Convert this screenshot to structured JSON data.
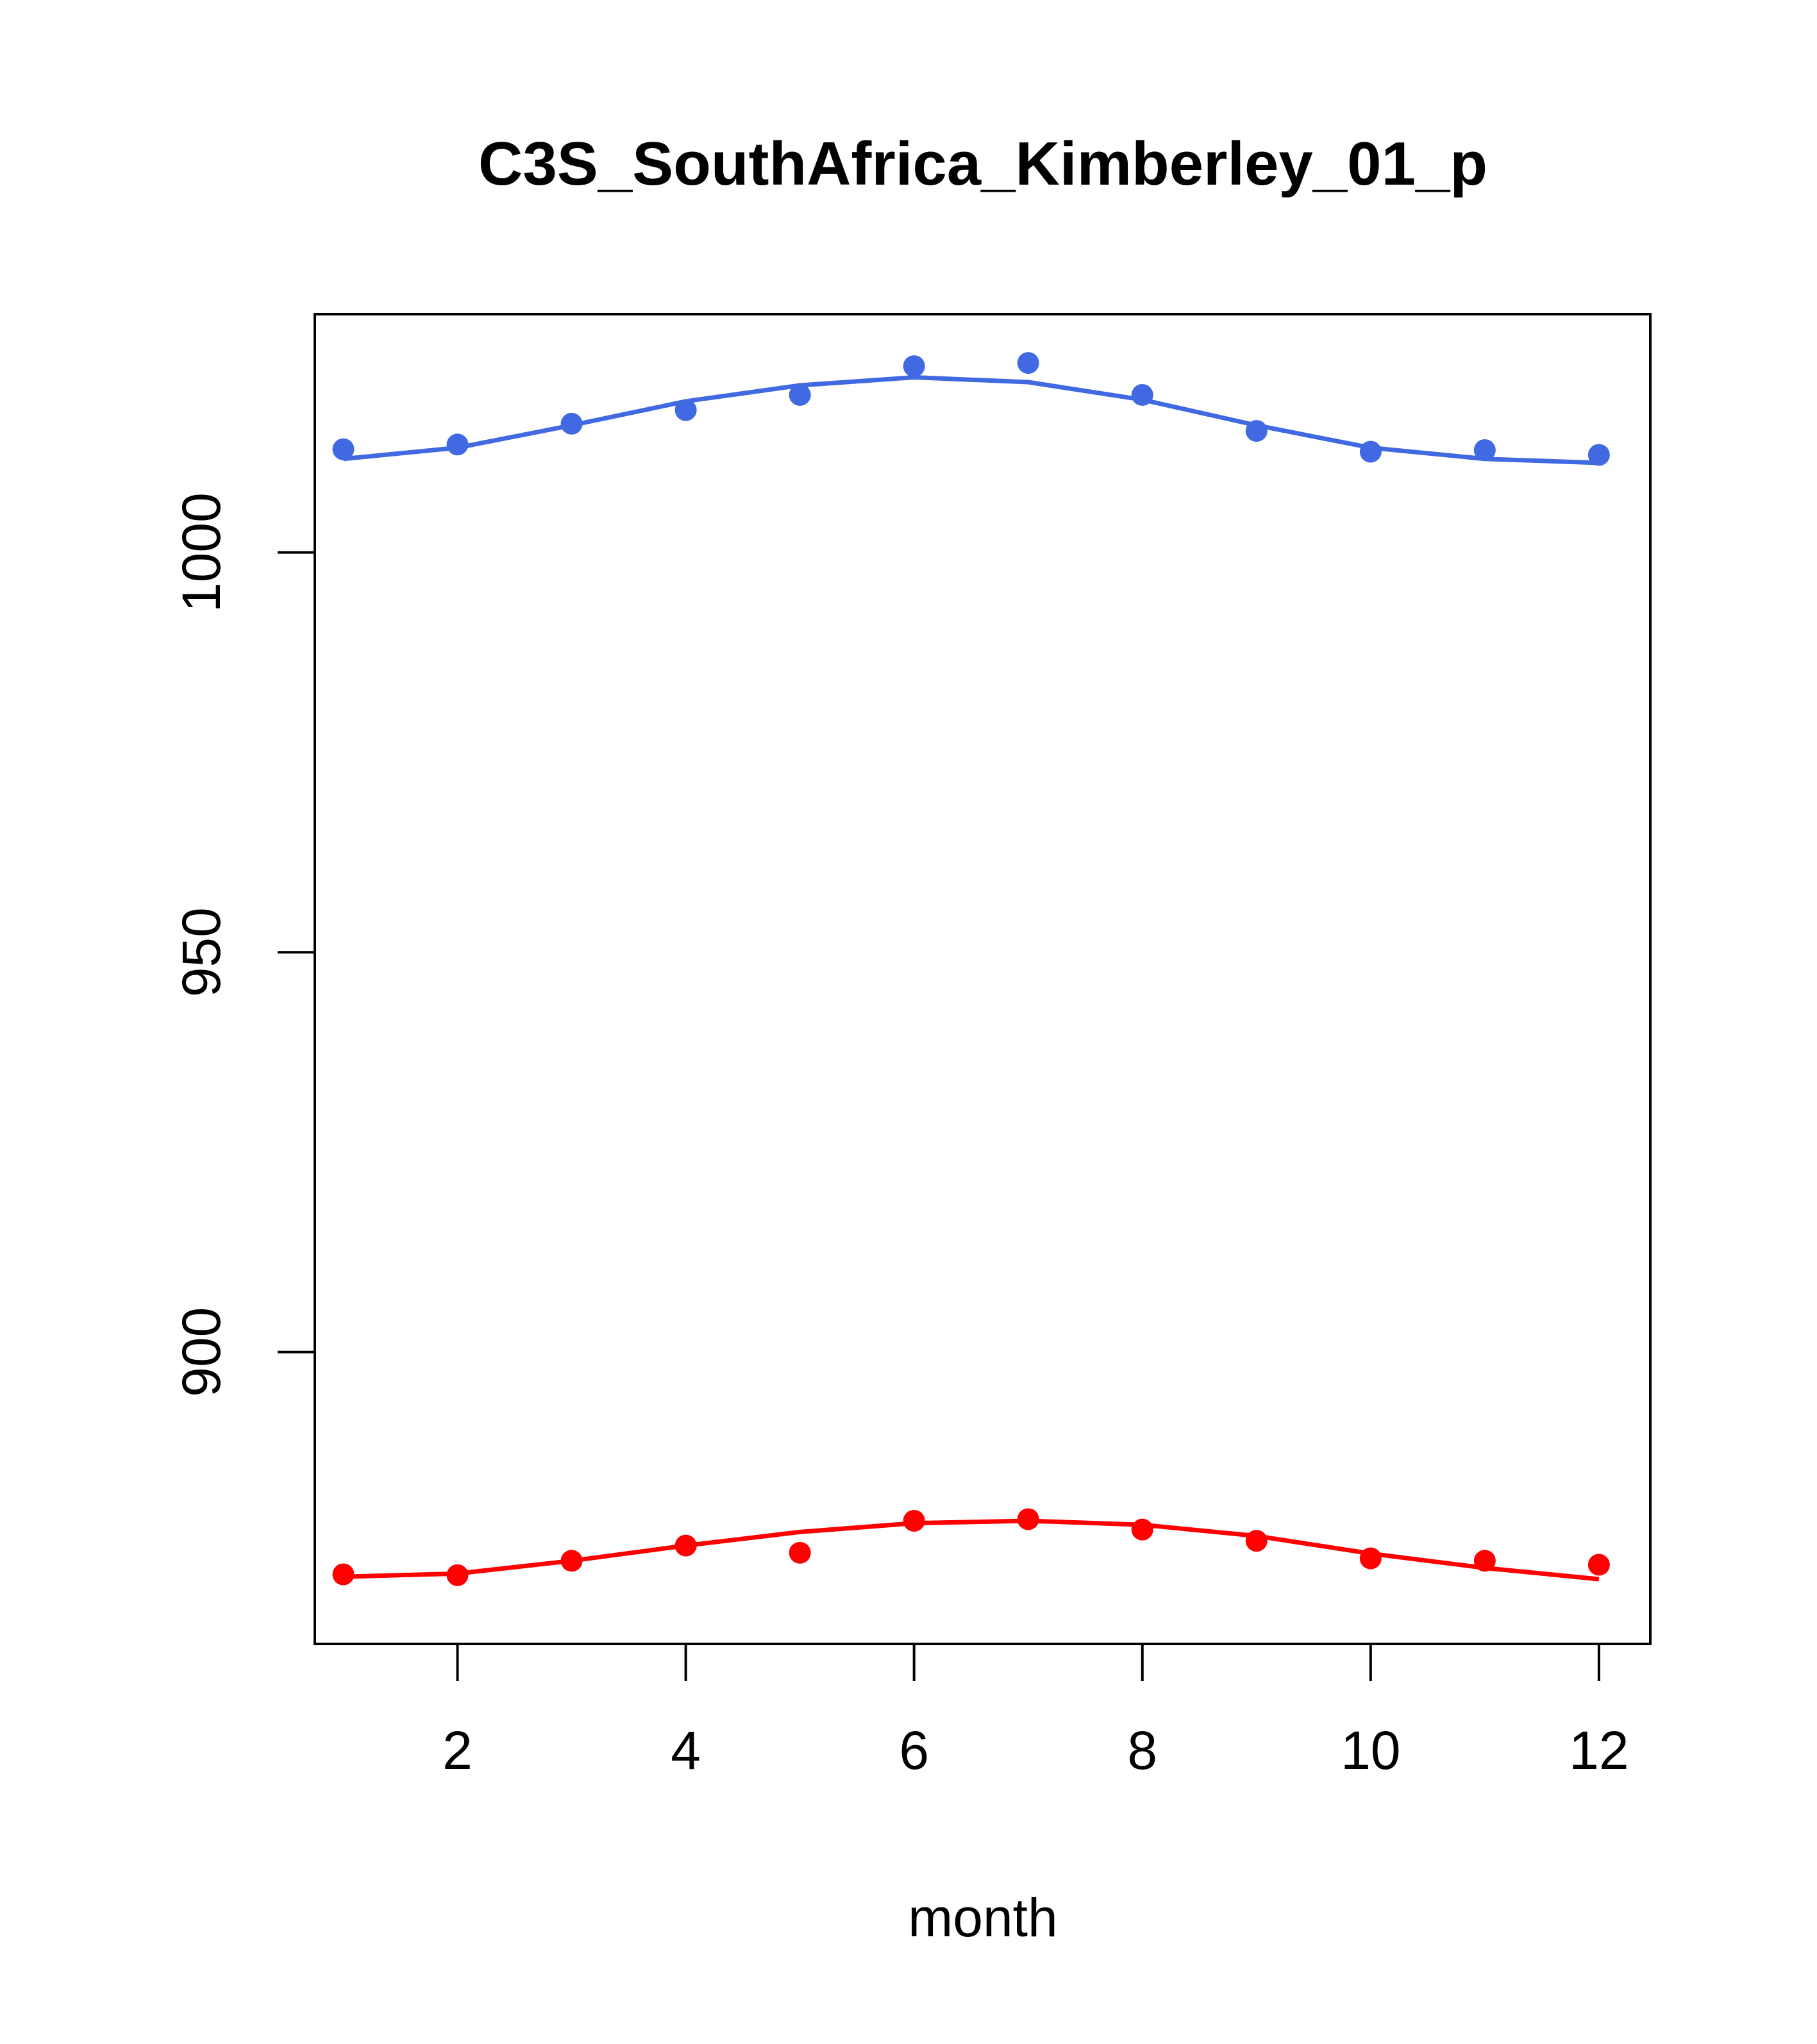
{
  "chart_data": {
    "type": "line",
    "title": "C3S_SouthAfrica_Kimberley_01_p",
    "xlabel": "month",
    "ylabel": "",
    "xlim": [
      0.75,
      12.45
    ],
    "ylim": [
      863.5,
      1029.8
    ],
    "x_ticks": [
      2,
      4,
      6,
      8,
      10,
      12
    ],
    "y_ticks": [
      900,
      950,
      1000
    ],
    "grid": false,
    "x": [
      1,
      2,
      3,
      4,
      5,
      6,
      7,
      8,
      9,
      10,
      11,
      12
    ],
    "series": [
      {
        "color": "#4169E1",
        "points": [
          1012.9,
          1013.5,
          1016.1,
          1017.8,
          1019.7,
          1023.3,
          1023.7,
          1019.7,
          1015.2,
          1012.6,
          1012.8,
          1012.2
        ],
        "line": [
          1011.7,
          1013.1,
          1015.9,
          1018.9,
          1020.9,
          1021.9,
          1021.3,
          1019.1,
          1015.9,
          1013.1,
          1011.7,
          1011.2
        ]
      },
      {
        "color": "#FF0000",
        "points": [
          872.2,
          872.1,
          873.9,
          875.8,
          874.9,
          878.9,
          879.1,
          877.8,
          876.4,
          874.2,
          873.9,
          873.4
        ],
        "line": [
          871.9,
          872.3,
          873.9,
          875.8,
          877.5,
          878.6,
          878.9,
          878.4,
          877.0,
          874.8,
          873.0,
          871.6
        ]
      }
    ]
  }
}
